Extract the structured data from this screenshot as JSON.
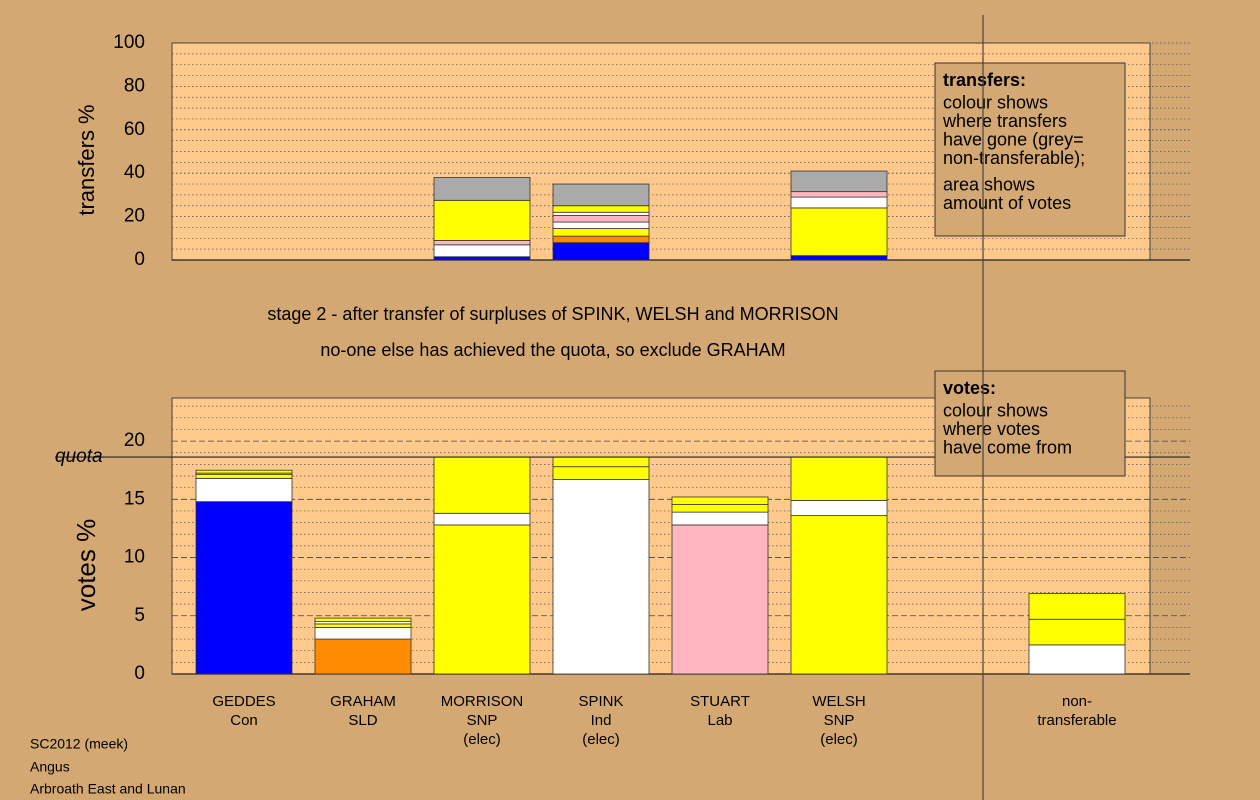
{
  "chart_data": [
    {
      "type": "bar",
      "ylabel": "transfers %",
      "ylim": [
        0,
        100
      ],
      "yticks": [
        0,
        20,
        40,
        60,
        80,
        100
      ],
      "minor_yticks": [
        5,
        10,
        15,
        25,
        30,
        35,
        45,
        50,
        55,
        65,
        70,
        75,
        85,
        90,
        95
      ],
      "stacks": [
        [],
        [],
        [
          {
            "color": "#0000ff",
            "value": 1.5
          },
          {
            "color": "#ffffff",
            "value": 5.5
          },
          {
            "color": "#ffb6c1",
            "value": 2
          },
          {
            "color": "#ffff00",
            "value": 18.5
          },
          {
            "color": "#aaaaaa",
            "value": 10.5
          }
        ],
        [
          {
            "color": "#0000ff",
            "value": 8
          },
          {
            "color": "#ff8c00",
            "value": 3
          },
          {
            "color": "#ffff00",
            "value": 3.5
          },
          {
            "color": "#ffffff",
            "value": 3
          },
          {
            "color": "#ffb6c1",
            "value": 3
          },
          {
            "color": "#ffffff",
            "value": 1.5
          },
          {
            "color": "#ffff00",
            "value": 3
          },
          {
            "color": "#aaaaaa",
            "value": 10
          }
        ],
        [],
        [
          {
            "color": "#0000ff",
            "value": 2
          },
          {
            "color": "#ffff00",
            "value": 22
          },
          {
            "color": "#ffffff",
            "value": 5
          },
          {
            "color": "#ffb6c1",
            "value": 2.5
          },
          {
            "color": "#aaaaaa",
            "value": 9.5
          }
        ],
        [],
        []
      ],
      "legend": {
        "title": "transfers:",
        "paragraphs": [
          [
            "colour shows",
            "where transfers",
            "have gone (grey=",
            "non-transferable);"
          ],
          [
            "area shows",
            "amount of votes"
          ]
        ]
      }
    },
    {
      "type": "bar",
      "ylabel": "votes %",
      "ylim": [
        0,
        23.7
      ],
      "yticks": [
        0,
        5,
        10,
        15,
        20
      ],
      "minor_yticks": [
        1,
        2,
        3,
        4,
        6,
        7,
        8,
        9,
        11,
        12,
        13,
        14,
        16,
        17,
        18,
        19,
        21,
        22,
        23
      ],
      "quota": {
        "value": 18.63,
        "label": "quota"
      },
      "categories": [
        [
          "GEDDES",
          "Con"
        ],
        [
          "GRAHAM",
          "SLD"
        ],
        [
          "MORRISON",
          "SNP",
          "(elec)"
        ],
        [
          "SPINK",
          "Ind",
          "(elec)"
        ],
        [
          "STUART",
          "Lab"
        ],
        [
          "WELSH",
          "SNP",
          "(elec)"
        ],
        null,
        [
          "non-",
          "transferable"
        ]
      ],
      "stacks": [
        [
          {
            "color": "#0000ff",
            "value": 14.8
          },
          {
            "color": "#ffffff",
            "value": 2
          },
          {
            "color": "#ffff00",
            "value": 0.35
          },
          {
            "color": "#ffffff",
            "value": 0.1
          },
          {
            "color": "#ffff00",
            "value": 0.25
          }
        ],
        [
          {
            "color": "#ff8c00",
            "value": 3
          },
          {
            "color": "#ffffff",
            "value": 1
          },
          {
            "color": "#ffff00",
            "value": 0.3
          },
          {
            "color": "#ffffff",
            "value": 0.2
          },
          {
            "color": "#ffff00",
            "value": 0.3
          }
        ],
        [
          {
            "color": "#ffff00",
            "value": 12.8
          },
          {
            "color": "#ffffff",
            "value": 1
          },
          {
            "color": "#ffff00",
            "value": 4.83
          }
        ],
        [
          {
            "color": "#ffffff",
            "value": 16.7
          },
          {
            "color": "#ffff00",
            "value": 1.1
          },
          {
            "color": "#ffff00",
            "value": 0.83
          }
        ],
        [
          {
            "color": "#ffb6c1",
            "value": 12.8
          },
          {
            "color": "#ffffff",
            "value": 1.1
          },
          {
            "color": "#ffff00",
            "value": 0.65
          },
          {
            "color": "#ffff00",
            "value": 0.65
          }
        ],
        [
          {
            "color": "#ffff00",
            "value": 13.6
          },
          {
            "color": "#ffffff",
            "value": 1.3
          },
          {
            "color": "#ffff00",
            "value": 3.73
          }
        ],
        [],
        [
          {
            "color": "#ffffff",
            "value": 2.5
          },
          {
            "color": "#ffff00",
            "value": 2.2
          },
          {
            "color": "#ffff00",
            "value": 2.2
          }
        ]
      ],
      "legend": {
        "title": "votes:",
        "paragraphs": [
          [
            "colour shows",
            "where votes",
            "have come from"
          ]
        ]
      }
    }
  ],
  "stage": [
    "stage 2 - after transfer of surpluses of SPINK, WELSH and MORRISON",
    "no-one else has achieved the quota, so exclude GRAHAM"
  ],
  "footer": [
    "SC2012 (meek)",
    "Angus",
    "Arbroath East and Lunan"
  ]
}
